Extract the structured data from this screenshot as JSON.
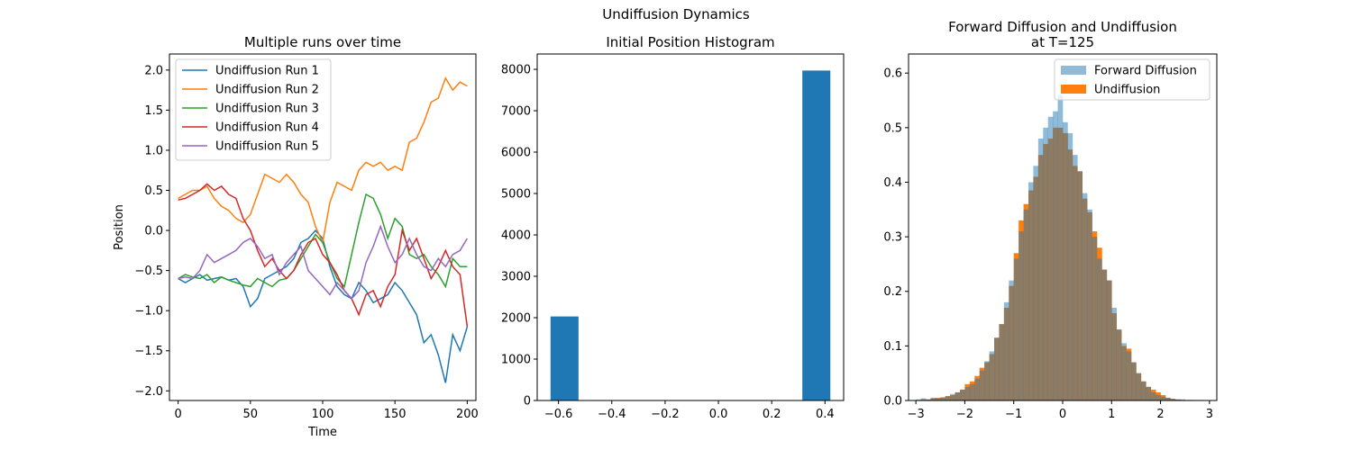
{
  "figure": {
    "suptitle": "Undiffusion Dynamics"
  },
  "chart_data": [
    {
      "type": "line",
      "title": "Multiple runs over time",
      "xlabel": "Time",
      "ylabel": "Position",
      "xlim": [
        -6,
        206
      ],
      "ylim": [
        -2.12,
        2.2
      ],
      "xticks": [
        "0",
        "50",
        "100",
        "150",
        "200"
      ],
      "yticks": [
        "-2.0",
        "-1.5",
        "-1.0",
        "-0.5",
        "0.0",
        "0.5",
        "1.0",
        "1.5",
        "2.0"
      ],
      "legend": "top-left",
      "grid": false,
      "series": [
        {
          "name": "Undiffusion Run 1",
          "color": "#1f77b4",
          "x": [
            0,
            5,
            10,
            15,
            20,
            25,
            30,
            35,
            40,
            45,
            50,
            55,
            60,
            65,
            70,
            75,
            80,
            85,
            90,
            95,
            100,
            105,
            110,
            115,
            120,
            125,
            130,
            135,
            140,
            145,
            150,
            155,
            160,
            165,
            170,
            175,
            180,
            185,
            190,
            195,
            200
          ],
          "values": [
            -0.6,
            -0.65,
            -0.6,
            -0.55,
            -0.62,
            -0.6,
            -0.58,
            -0.62,
            -0.6,
            -0.7,
            -0.95,
            -0.85,
            -0.6,
            -0.55,
            -0.5,
            -0.45,
            -0.35,
            -0.15,
            -0.1,
            0.0,
            -0.1,
            -0.45,
            -0.7,
            -0.8,
            -0.85,
            -0.65,
            -0.75,
            -0.9,
            -0.85,
            -0.8,
            -0.65,
            -0.75,
            -0.9,
            -1.05,
            -1.4,
            -1.3,
            -1.55,
            -1.9,
            -1.3,
            -1.5,
            -1.2
          ]
        },
        {
          "name": "Undiffusion Run 2",
          "color": "#ff7f0e",
          "x": [
            0,
            5,
            10,
            15,
            20,
            25,
            30,
            35,
            40,
            45,
            50,
            55,
            60,
            65,
            70,
            75,
            80,
            85,
            90,
            95,
            100,
            105,
            110,
            115,
            120,
            125,
            130,
            135,
            140,
            145,
            150,
            155,
            160,
            165,
            170,
            175,
            180,
            185,
            190,
            195,
            200
          ],
          "values": [
            0.4,
            0.45,
            0.5,
            0.5,
            0.55,
            0.4,
            0.3,
            0.25,
            0.15,
            0.1,
            0.2,
            0.45,
            0.7,
            0.65,
            0.6,
            0.7,
            0.6,
            0.45,
            0.35,
            0.05,
            -0.15,
            0.35,
            0.6,
            0.55,
            0.5,
            0.75,
            0.85,
            0.8,
            0.85,
            0.75,
            0.8,
            0.75,
            1.1,
            1.15,
            1.35,
            1.6,
            1.65,
            1.9,
            1.75,
            1.85,
            1.8
          ]
        },
        {
          "name": "Undiffusion Run 3",
          "color": "#2ca02c",
          "x": [
            0,
            5,
            10,
            15,
            20,
            25,
            30,
            35,
            40,
            45,
            50,
            55,
            60,
            65,
            70,
            75,
            80,
            85,
            90,
            95,
            100,
            105,
            110,
            115,
            120,
            125,
            130,
            135,
            140,
            145,
            150,
            155,
            160,
            165,
            170,
            175,
            180,
            185,
            190,
            195,
            200
          ],
          "values": [
            -0.6,
            -0.55,
            -0.58,
            -0.6,
            -0.55,
            -0.65,
            -0.58,
            -0.62,
            -0.65,
            -0.68,
            -0.7,
            -0.6,
            -0.65,
            -0.7,
            -0.62,
            -0.6,
            -0.5,
            -0.35,
            -0.2,
            -0.05,
            -0.15,
            -0.4,
            -0.6,
            -0.7,
            -0.3,
            0.1,
            0.45,
            0.4,
            0.2,
            -0.1,
            0.15,
            0.05,
            -0.3,
            -0.35,
            -0.3,
            -0.45,
            -0.55,
            -0.7,
            -0.35,
            -0.45,
            -0.45
          ]
        },
        {
          "name": "Undiffusion Run 4",
          "color": "#d62728",
          "x": [
            0,
            5,
            10,
            15,
            20,
            25,
            30,
            35,
            40,
            45,
            50,
            55,
            60,
            65,
            70,
            75,
            80,
            85,
            90,
            95,
            100,
            105,
            110,
            115,
            120,
            125,
            130,
            135,
            140,
            145,
            150,
            155,
            160,
            165,
            170,
            175,
            180,
            185,
            190,
            195,
            200
          ],
          "values": [
            0.38,
            0.4,
            0.45,
            0.5,
            0.58,
            0.5,
            0.55,
            0.45,
            0.4,
            0.15,
            0.0,
            -0.25,
            -0.45,
            -0.35,
            -0.5,
            -0.6,
            -0.5,
            -0.3,
            -0.15,
            -0.1,
            -0.3,
            -0.4,
            -0.55,
            -0.75,
            -0.85,
            -1.05,
            -0.8,
            -0.75,
            -0.95,
            -0.7,
            -0.55,
            0.0,
            -0.25,
            -0.1,
            -0.35,
            -0.6,
            -0.45,
            -0.25,
            -0.45,
            -0.55,
            -1.2
          ]
        },
        {
          "name": "Undiffusion Run 5",
          "color": "#9467bd",
          "x": [
            0,
            5,
            10,
            15,
            20,
            25,
            30,
            35,
            40,
            45,
            50,
            55,
            60,
            65,
            70,
            75,
            80,
            85,
            90,
            95,
            100,
            105,
            110,
            115,
            120,
            125,
            130,
            135,
            140,
            145,
            150,
            155,
            160,
            165,
            170,
            175,
            180,
            185,
            190,
            195,
            200
          ],
          "values": [
            -0.6,
            -0.58,
            -0.6,
            -0.5,
            -0.3,
            -0.4,
            -0.35,
            -0.3,
            -0.25,
            -0.15,
            -0.1,
            -0.2,
            -0.35,
            -0.3,
            -0.55,
            -0.4,
            -0.3,
            -0.2,
            -0.5,
            -0.6,
            -0.7,
            -0.8,
            -0.65,
            -0.75,
            -0.85,
            -0.75,
            -0.4,
            -0.2,
            0.05,
            -0.2,
            -0.4,
            -0.3,
            -0.1,
            -0.3,
            -0.45,
            -0.5,
            -0.35,
            -0.45,
            -0.3,
            -0.25,
            -0.1
          ]
        }
      ]
    },
    {
      "type": "bar",
      "title": "Initial Position Histogram",
      "xlim": [
        -0.68,
        0.47
      ],
      "ylim": [
        0,
        8370
      ],
      "xticks": [
        "-0.6",
        "-0.4",
        "-0.2",
        "0.0",
        "0.2",
        "0.4"
      ],
      "yticks": [
        "0",
        "1000",
        "2000",
        "3000",
        "4000",
        "5000",
        "6000",
        "7000",
        "8000"
      ],
      "grid": false,
      "color": "#1f77b4",
      "bins": [
        {
          "x0": -0.63,
          "x1": -0.525,
          "value": 2030
        },
        {
          "x0": 0.315,
          "x1": 0.42,
          "value": 7970
        }
      ]
    },
    {
      "type": "bar",
      "title": "Forward Diffusion and Undiffusion\nat T=125",
      "xlim": [
        -3.15,
        3.15
      ],
      "ylim": [
        0,
        0.635
      ],
      "xticks": [
        "-3",
        "-2",
        "-1",
        "0",
        "1",
        "2",
        "3"
      ],
      "yticks": [
        "0.0",
        "0.1",
        "0.2",
        "0.3",
        "0.4",
        "0.5",
        "0.6"
      ],
      "legend": "top-right",
      "grid": false,
      "series": [
        {
          "name": "Forward Diffusion",
          "color": "#1f77b4",
          "alpha": 0.5,
          "bin_start": -3.0,
          "bin_width": 0.1,
          "values": [
            0.002,
            0.004,
            0.002,
            0.005,
            0.004,
            0.005,
            0.008,
            0.012,
            0.015,
            0.02,
            0.025,
            0.03,
            0.04,
            0.055,
            0.072,
            0.09,
            0.115,
            0.14,
            0.18,
            0.22,
            0.26,
            0.31,
            0.35,
            0.4,
            0.43,
            0.48,
            0.5,
            0.52,
            0.53,
            0.56,
            0.51,
            0.49,
            0.45,
            0.42,
            0.38,
            0.35,
            0.3,
            0.26,
            0.24,
            0.22,
            0.17,
            0.13,
            0.105,
            0.09,
            0.07,
            0.05,
            0.035,
            0.025,
            0.015,
            0.01,
            0.007,
            0.005,
            0.003,
            0.002,
            0.002,
            0.001,
            0.001,
            0.001,
            0.001,
            0.0
          ]
        },
        {
          "name": "Undiffusion",
          "color": "#ff7f0e",
          "alpha": 1.0,
          "bin_start": -3.0,
          "bin_width": 0.1,
          "values": [
            0.0,
            0.002,
            0.002,
            0.004,
            0.005,
            0.006,
            0.008,
            0.01,
            0.015,
            0.02,
            0.03,
            0.035,
            0.045,
            0.06,
            0.07,
            0.085,
            0.115,
            0.14,
            0.17,
            0.21,
            0.27,
            0.33,
            0.36,
            0.385,
            0.41,
            0.45,
            0.47,
            0.48,
            0.5,
            0.5,
            0.49,
            0.46,
            0.43,
            0.42,
            0.37,
            0.345,
            0.31,
            0.28,
            0.24,
            0.22,
            0.16,
            0.13,
            0.1,
            0.095,
            0.07,
            0.05,
            0.035,
            0.025,
            0.02,
            0.015,
            0.01,
            0.005,
            0.003,
            0.002,
            0.001,
            0.001,
            0.001,
            0.0,
            0.0,
            0.0
          ]
        }
      ]
    }
  ]
}
